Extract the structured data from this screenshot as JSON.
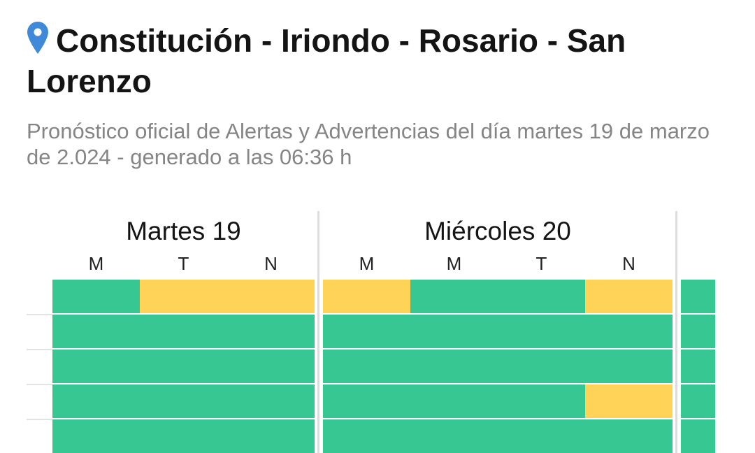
{
  "location": {
    "title": "Constitución - Iriondo - Rosario - San Lorenzo",
    "subtitle": "Pronóstico oficial de Alertas y Advertencias del día martes 19 de marzo de 2.024 - generado a las 06:36 h",
    "pin_icon": "map-pin-icon",
    "pin_color": "#3f8ad8"
  },
  "colors": {
    "green": "#36c793",
    "yellow": "#fed357"
  },
  "days": [
    {
      "title": "Martes 19",
      "slots": [
        "M",
        "T",
        "N"
      ],
      "rows": [
        [
          "green",
          "yellow",
          "yellow"
        ],
        [
          "green",
          "green",
          "green"
        ],
        [
          "green",
          "green",
          "green"
        ],
        [
          "green",
          "green",
          "green"
        ],
        [
          "green",
          "green",
          "green"
        ]
      ]
    },
    {
      "title": "Miércoles 20",
      "slots": [
        "M",
        "M",
        "T",
        "N"
      ],
      "rows": [
        [
          "yellow",
          "green",
          "green",
          "yellow"
        ],
        [
          "green",
          "green",
          "green",
          "green"
        ],
        [
          "green",
          "green",
          "green",
          "green"
        ],
        [
          "green",
          "green",
          "green",
          "yellow"
        ],
        [
          "green",
          "green",
          "green",
          "green"
        ]
      ]
    },
    {
      "title": "",
      "slots": [],
      "rows": [
        [
          "green"
        ],
        [
          "green"
        ],
        [
          "green"
        ],
        [
          "green"
        ],
        [
          "green"
        ]
      ]
    }
  ]
}
